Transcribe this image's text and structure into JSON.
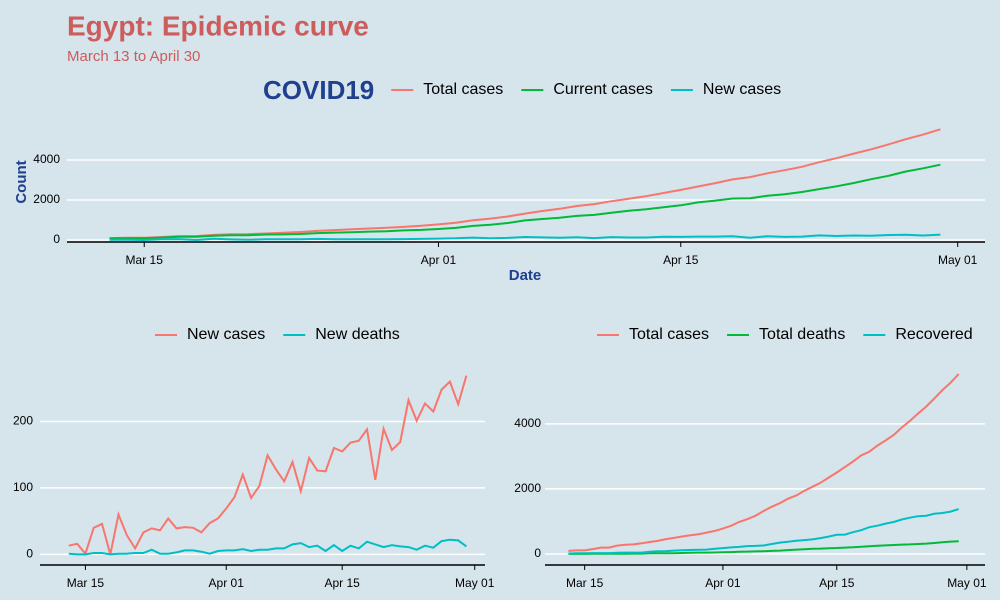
{
  "title": "Egypt: Epidemic curve",
  "subtitle": "March 13 to April 30",
  "chart_data": [
    {
      "type": "line",
      "legend_title": "COVID19",
      "legend": "top",
      "ylabel": "Count",
      "xlabel": "Date",
      "grid": true,
      "x": [
        "Mar 13",
        "Mar 14",
        "Mar 15",
        "Mar 16",
        "Mar 17",
        "Mar 18",
        "Mar 19",
        "Mar 20",
        "Mar 21",
        "Mar 22",
        "Mar 23",
        "Mar 24",
        "Mar 25",
        "Mar 26",
        "Mar 27",
        "Mar 28",
        "Mar 29",
        "Mar 30",
        "Mar 31",
        "Apr 01",
        "Apr 02",
        "Apr 03",
        "Apr 04",
        "Apr 05",
        "Apr 06",
        "Apr 07",
        "Apr 08",
        "Apr 09",
        "Apr 10",
        "Apr 11",
        "Apr 12",
        "Apr 13",
        "Apr 14",
        "Apr 15",
        "Apr 16",
        "Apr 17",
        "Apr 18",
        "Apr 19",
        "Apr 20",
        "Apr 21",
        "Apr 22",
        "Apr 23",
        "Apr 24",
        "Apr 25",
        "Apr 26",
        "Apr 27",
        "Apr 28",
        "Apr 29",
        "Apr 30"
      ],
      "xlim": [
        "Mar 11",
        "May 02"
      ],
      "xticks": [
        "Mar 15",
        "Apr 01",
        "Apr 15",
        "May 01"
      ],
      "ylim": [
        -100,
        5800
      ],
      "yticks": [
        0,
        2000,
        4000
      ],
      "series": [
        {
          "name": "Total cases",
          "color": "#f8766d",
          "values": [
            93,
            109,
            110,
            150,
            196,
            196,
            256,
            285,
            294,
            327,
            366,
            402,
            456,
            495,
            536,
            576,
            609,
            656,
            710,
            779,
            865,
            985,
            1070,
            1173,
            1322,
            1450,
            1560,
            1699,
            1794,
            1939,
            2065,
            2190,
            2350,
            2505,
            2673,
            2844,
            3032,
            3144,
            3333,
            3490,
            3659,
            3891,
            4092,
            4319,
            4534,
            4782,
            5042,
            5268,
            5537
          ]
        },
        {
          "name": "Current cases",
          "color": "#00ba38",
          "values": [
            79,
            87,
            87,
            119,
            163,
            163,
            210,
            237,
            242,
            273,
            279,
            302,
            346,
            369,
            390,
            419,
            437,
            480,
            507,
            548,
            606,
            703,
            758,
            848,
            978,
            1051,
            1109,
            1204,
            1253,
            1367,
            1459,
            1537,
            1638,
            1733,
            1881,
            1969,
            2076,
            2083,
            2213,
            2292,
            2400,
            2544,
            2684,
            2850,
            3041,
            3209,
            3423,
            3584,
            3764
          ]
        },
        {
          "name": "New cases",
          "color": "#00bfc4",
          "values": [
            13,
            16,
            1,
            40,
            46,
            0,
            60,
            29,
            9,
            33,
            39,
            36,
            54,
            39,
            41,
            40,
            33,
            47,
            54,
            69,
            86,
            120,
            85,
            103,
            149,
            128,
            110,
            139,
            95,
            145,
            126,
            125,
            160,
            155,
            168,
            171,
            188,
            112,
            189,
            157,
            169,
            232,
            201,
            227,
            215,
            248,
            260,
            226,
            269
          ]
        }
      ]
    },
    {
      "type": "line",
      "legend": "top",
      "grid": true,
      "x": [
        "Mar 13",
        "Mar 14",
        "Mar 15",
        "Mar 16",
        "Mar 17",
        "Mar 18",
        "Mar 19",
        "Mar 20",
        "Mar 21",
        "Mar 22",
        "Mar 23",
        "Mar 24",
        "Mar 25",
        "Mar 26",
        "Mar 27",
        "Mar 28",
        "Mar 29",
        "Mar 30",
        "Mar 31",
        "Apr 01",
        "Apr 02",
        "Apr 03",
        "Apr 04",
        "Apr 05",
        "Apr 06",
        "Apr 07",
        "Apr 08",
        "Apr 09",
        "Apr 10",
        "Apr 11",
        "Apr 12",
        "Apr 13",
        "Apr 14",
        "Apr 15",
        "Apr 16",
        "Apr 17",
        "Apr 18",
        "Apr 19",
        "Apr 20",
        "Apr 21",
        "Apr 22",
        "Apr 23",
        "Apr 24",
        "Apr 25",
        "Apr 26",
        "Apr 27",
        "Apr 28",
        "Apr 29",
        "Apr 30"
      ],
      "xlim": [
        "Mar 10",
        "May 02"
      ],
      "xticks": [
        "Mar 15",
        "Apr 01",
        "Apr 15",
        "May 01"
      ],
      "ylim": [
        -16,
        300
      ],
      "yticks": [
        0,
        100,
        200
      ],
      "series": [
        {
          "name": "New cases",
          "color": "#f8766d",
          "values": [
            13,
            16,
            1,
            40,
            46,
            0,
            60,
            29,
            9,
            33,
            39,
            36,
            54,
            39,
            41,
            40,
            33,
            47,
            54,
            69,
            86,
            120,
            85,
            103,
            149,
            128,
            110,
            139,
            95,
            145,
            126,
            125,
            160,
            155,
            168,
            171,
            188,
            112,
            189,
            157,
            169,
            232,
            201,
            227,
            215,
            248,
            260,
            226,
            269
          ]
        },
        {
          "name": "New deaths",
          "color": "#00bfc4",
          "values": [
            1,
            0,
            0,
            2,
            2,
            0,
            1,
            1,
            2,
            2,
            7,
            1,
            1,
            3,
            6,
            6,
            4,
            1,
            5,
            6,
            6,
            8,
            5,
            7,
            7,
            9,
            9,
            15,
            17,
            11,
            13,
            5,
            14,
            5,
            13,
            9,
            19,
            15,
            11,
            14,
            12,
            11,
            7,
            13,
            10,
            20,
            22,
            21,
            12
          ]
        }
      ]
    },
    {
      "type": "line",
      "legend": "top",
      "grid": true,
      "x": [
        "Mar 13",
        "Mar 14",
        "Mar 15",
        "Mar 16",
        "Mar 17",
        "Mar 18",
        "Mar 19",
        "Mar 20",
        "Mar 21",
        "Mar 22",
        "Mar 23",
        "Mar 24",
        "Mar 25",
        "Mar 26",
        "Mar 27",
        "Mar 28",
        "Mar 29",
        "Mar 30",
        "Mar 31",
        "Apr 01",
        "Apr 02",
        "Apr 03",
        "Apr 04",
        "Apr 05",
        "Apr 06",
        "Apr 07",
        "Apr 08",
        "Apr 09",
        "Apr 10",
        "Apr 11",
        "Apr 12",
        "Apr 13",
        "Apr 14",
        "Apr 15",
        "Apr 16",
        "Apr 17",
        "Apr 18",
        "Apr 19",
        "Apr 20",
        "Apr 21",
        "Apr 22",
        "Apr 23",
        "Apr 24",
        "Apr 25",
        "Apr 26",
        "Apr 27",
        "Apr 28",
        "Apr 29",
        "Apr 30"
      ],
      "xlim": [
        "Mar 10",
        "May 02"
      ],
      "xticks": [
        "Mar 15",
        "Apr 01",
        "Apr 15",
        "May 01"
      ],
      "ylim": [
        -340,
        6120
      ],
      "yticks": [
        0,
        2000,
        4000
      ],
      "series": [
        {
          "name": "Total cases",
          "color": "#f8766d",
          "values": [
            93,
            109,
            110,
            150,
            196,
            196,
            256,
            285,
            294,
            327,
            366,
            402,
            456,
            495,
            536,
            576,
            609,
            656,
            710,
            779,
            865,
            985,
            1070,
            1173,
            1322,
            1450,
            1560,
            1699,
            1794,
            1939,
            2065,
            2190,
            2350,
            2505,
            2673,
            2844,
            3032,
            3144,
            3333,
            3490,
            3659,
            3891,
            4092,
            4319,
            4534,
            4782,
            5042,
            5268,
            5537
          ]
        },
        {
          "name": "Total deaths",
          "color": "#00ba38",
          "values": [
            2,
            2,
            2,
            4,
            6,
            6,
            7,
            8,
            10,
            12,
            19,
            20,
            21,
            24,
            30,
            36,
            40,
            41,
            46,
            52,
            58,
            66,
            71,
            78,
            85,
            94,
            103,
            118,
            135,
            146,
            159,
            164,
            178,
            183,
            196,
            205,
            224,
            239,
            250,
            264,
            276,
            287,
            294,
            307,
            317,
            337,
            359,
            380,
            392
          ]
        },
        {
          "name": "Recovered",
          "color": "#00bfc4",
          "values": [
            12,
            20,
            21,
            27,
            27,
            27,
            39,
            40,
            42,
            42,
            68,
            80,
            89,
            102,
            116,
            121,
            132,
            135,
            157,
            179,
            201,
            216,
            241,
            247,
            259,
            305,
            348,
            377,
            406,
            426,
            447,
            489,
            534,
            589,
            596,
            670,
            732,
            822,
            870,
            934,
            983,
            1060,
            1114,
            1162,
            1176,
            1236,
            1260,
            1304,
            1381
          ]
        }
      ]
    }
  ]
}
